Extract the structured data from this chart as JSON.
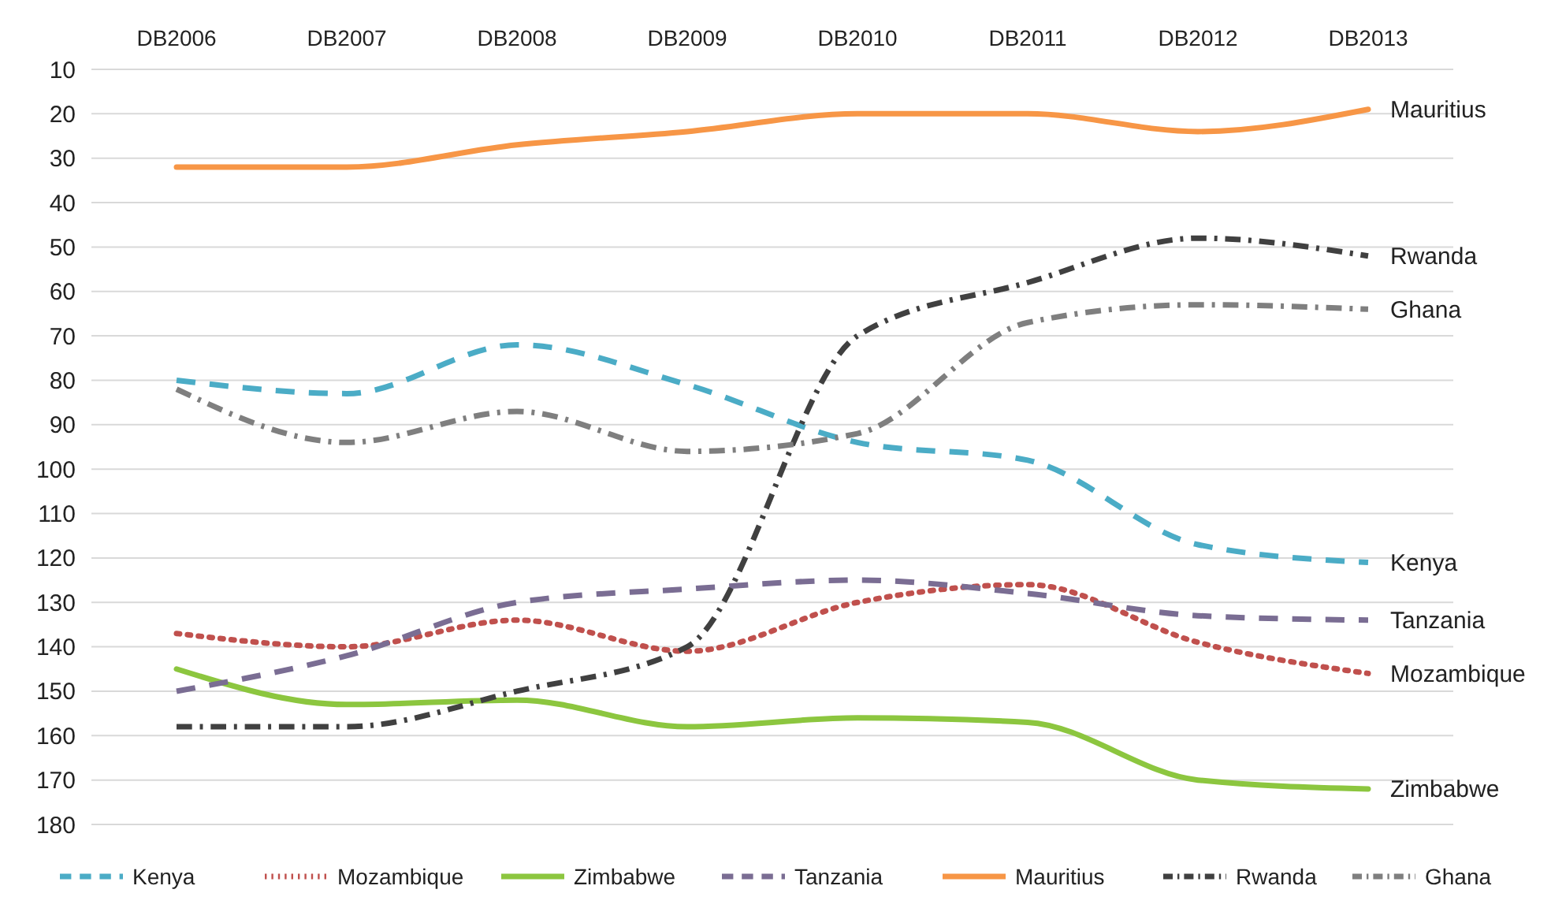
{
  "chart_data": {
    "type": "line",
    "categories": [
      "DB2006",
      "DB2007",
      "DB2008",
      "DB2009",
      "DB2010",
      "DB2011",
      "DB2012",
      "DB2013"
    ],
    "ylim": [
      180,
      10
    ],
    "yticks": [
      10,
      20,
      30,
      40,
      50,
      60,
      70,
      80,
      90,
      100,
      110,
      120,
      130,
      140,
      150,
      160,
      170,
      180
    ],
    "grid": "y",
    "legend": "bottom",
    "marker": "none",
    "series": [
      {
        "name": "Kenya",
        "color": "#4bacc6",
        "line_style": "dashed",
        "values": [
          80,
          83,
          72,
          81,
          94,
          98,
          117,
          121
        ]
      },
      {
        "name": "Mozambique",
        "color": "#c0504d",
        "line_style": "dotted",
        "values": [
          137,
          140,
          134,
          141,
          130,
          126,
          139,
          146
        ]
      },
      {
        "name": "Zimbabwe",
        "color": "#8cc63f",
        "line_style": "solid",
        "values": [
          145,
          153,
          152,
          158,
          156,
          157,
          170,
          172
        ]
      },
      {
        "name": "Tanzania",
        "color": "#7a6d93",
        "line_style": "dashed",
        "values": [
          150,
          142,
          130,
          127,
          125,
          128,
          133,
          134
        ]
      },
      {
        "name": "Mauritius",
        "color": "#f79646",
        "line_style": "solid",
        "values": [
          32,
          32,
          27,
          24,
          20,
          20,
          24,
          19
        ]
      },
      {
        "name": "Rwanda",
        "color": "#404040",
        "line_style": "dashdot",
        "values": [
          158,
          158,
          150,
          140,
          70,
          58,
          48,
          52
        ]
      },
      {
        "name": "Ghana",
        "color": "#7f7f7f",
        "line_style": "dashdot",
        "values": [
          82,
          94,
          87,
          96,
          92,
          67,
          63,
          64
        ]
      }
    ]
  }
}
